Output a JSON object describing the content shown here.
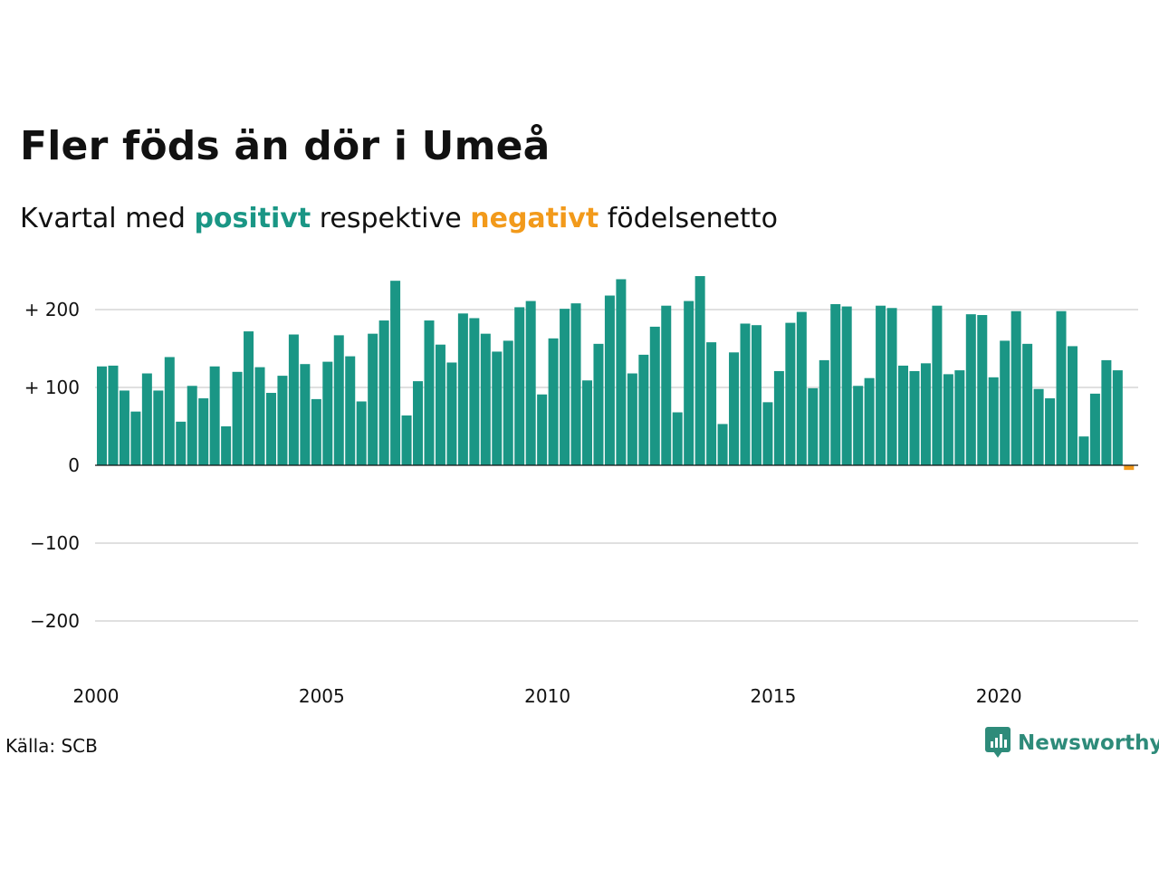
{
  "header": {
    "title": "Fler föds än dör i Umeå",
    "subtitle_prefix": "Kvartal med",
    "subtitle_positive": "positivt",
    "subtitle_middle": "respektive",
    "subtitle_negative": "negativt",
    "subtitle_suffix": "födelsenetto"
  },
  "footer": {
    "source": "Källa: SCB",
    "brand": "Newsworthy"
  },
  "colors": {
    "positive": "#1a9685",
    "negative": "#f29a1b",
    "brand": "#2e8b7a",
    "grid": "#e0e0e0"
  },
  "icons": {
    "brand_logo": "newsworthy-logo-icon"
  },
  "chart_data": {
    "type": "bar",
    "title": "Fler föds än dör i Umeå",
    "subtitle": "Kvartal med positivt respektive negativt födelsenetto",
    "xlabel": "",
    "ylabel": "",
    "ylim": [
      -250,
      250
    ],
    "yticks": [
      200,
      100,
      0,
      -100,
      -200
    ],
    "ytick_labels": [
      "+ 200",
      "+ 100",
      "0",
      "−100",
      "−200"
    ],
    "xticks": [
      2000,
      2005,
      2010,
      2015,
      2020
    ],
    "xtick_labels": [
      "2000",
      "2005",
      "2010",
      "2015",
      "2020"
    ],
    "start_year": 2000,
    "start_quarter": 1,
    "grid": true,
    "series": [
      {
        "values": [
          127,
          128,
          96,
          69,
          118,
          96,
          139,
          56,
          102,
          86,
          127,
          50,
          120,
          172,
          126,
          93,
          115,
          168,
          130,
          85,
          133,
          167,
          140,
          82,
          169,
          186,
          237,
          64,
          108,
          186,
          155,
          132,
          195,
          189,
          169,
          146,
          160,
          203,
          211,
          91,
          163,
          201,
          208,
          109,
          156,
          218,
          239,
          118,
          142,
          178,
          205,
          68,
          211,
          243,
          158,
          53,
          145,
          182,
          180,
          81,
          121,
          183,
          197,
          99,
          135,
          207,
          204,
          102,
          112,
          205,
          202,
          128,
          121,
          131,
          205,
          117,
          122,
          194,
          193,
          113,
          160,
          198,
          156,
          98,
          86,
          198,
          153,
          37,
          92,
          135,
          122,
          -6
        ]
      }
    ]
  }
}
